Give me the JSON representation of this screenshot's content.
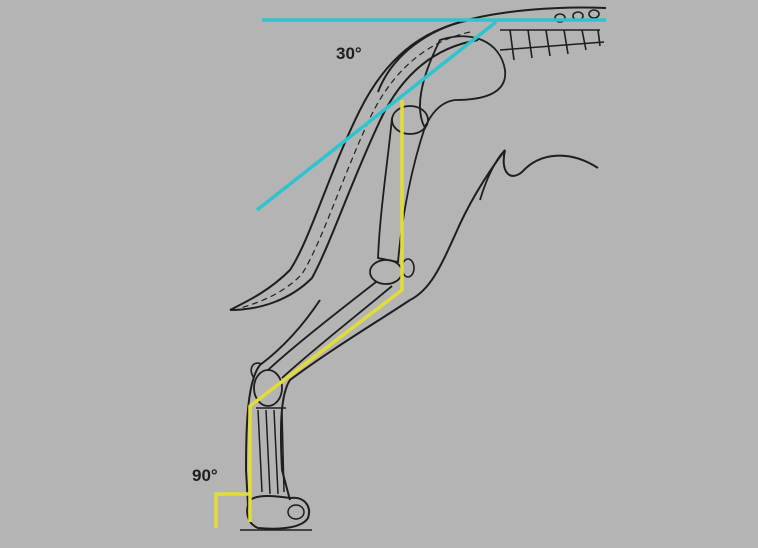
{
  "diagram": {
    "background_color": "#b4b4b4",
    "pelvis_angle_label": "30°",
    "paw_angle_label": "90°",
    "reference_line_color": "#2ec4cf",
    "limb_axis_color": "#e2db38",
    "outline_color": "#1e1e1e"
  }
}
